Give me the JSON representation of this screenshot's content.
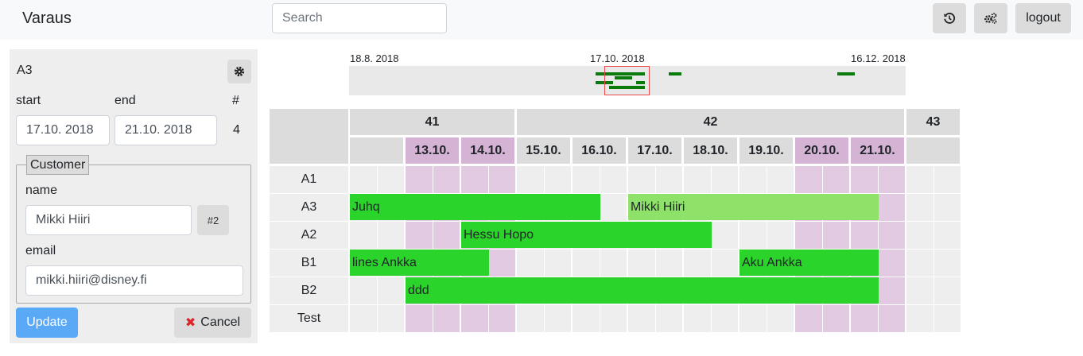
{
  "app": {
    "title": "Varaus"
  },
  "search": {
    "placeholder": "Search",
    "value": ""
  },
  "toolbar": {
    "history_icon": "history-icon",
    "settings_icon": "gears-icon",
    "logout_label": "logout"
  },
  "panel": {
    "resource_name": "A3",
    "settings_icon": "gear-icon",
    "start_label": "start",
    "end_label": "end",
    "count_label": "#",
    "start_value": "17.10. 2018",
    "end_value": "21.10. 2018",
    "count_value": "4",
    "customer": {
      "legend": "Customer",
      "name_label": "name",
      "name_value": "Mikki Hiiri",
      "id_badge": "#2",
      "email_label": "email",
      "email_value": "mikki.hiiri@disney.fi"
    },
    "update_label": "Update",
    "cancel_label": "Cancel",
    "cancel_icon": "close-icon"
  },
  "timeline": {
    "start_date": "18.8. 2018",
    "mid_date": "17.10. 2018",
    "end_date": "16.12. 2018"
  },
  "calendar": {
    "weeks": [
      {
        "label": "41",
        "days": 3
      },
      {
        "label": "42",
        "days": 7
      },
      {
        "label": "43",
        "days": 1
      }
    ],
    "days": [
      {
        "label": "",
        "weekend": false
      },
      {
        "label": "13.10.",
        "weekend": true
      },
      {
        "label": "14.10.",
        "weekend": true
      },
      {
        "label": "15.10.",
        "weekend": false
      },
      {
        "label": "16.10.",
        "weekend": false
      },
      {
        "label": "17.10.",
        "weekend": false
      },
      {
        "label": "18.10.",
        "weekend": false
      },
      {
        "label": "19.10.",
        "weekend": false
      },
      {
        "label": "20.10.",
        "weekend": true
      },
      {
        "label": "21.10.",
        "weekend": true
      },
      {
        "label": "",
        "weekend": false
      }
    ],
    "resources": [
      "A1",
      "A3",
      "A2",
      "B1",
      "B2",
      "Test"
    ],
    "reservations": [
      {
        "resource": "A3",
        "label": "Juhq",
        "start_day": 0,
        "end_day": 4,
        "selected": false
      },
      {
        "resource": "A3",
        "label": "Mikki Hiiri",
        "start_day": 5,
        "end_day": 9,
        "selected": true
      },
      {
        "resource": "A2",
        "label": "Hessu Hopo",
        "start_day": 2,
        "end_day": 6,
        "selected": false
      },
      {
        "resource": "B1",
        "label": "lines Ankka",
        "start_day": 0,
        "end_day": 2,
        "selected": false
      },
      {
        "resource": "B1",
        "label": "Aku Ankka",
        "start_day": 7,
        "end_day": 9,
        "selected": false
      },
      {
        "resource": "B2",
        "label": "ddd",
        "start_day": 1,
        "end_day": 9,
        "selected": false
      }
    ]
  }
}
